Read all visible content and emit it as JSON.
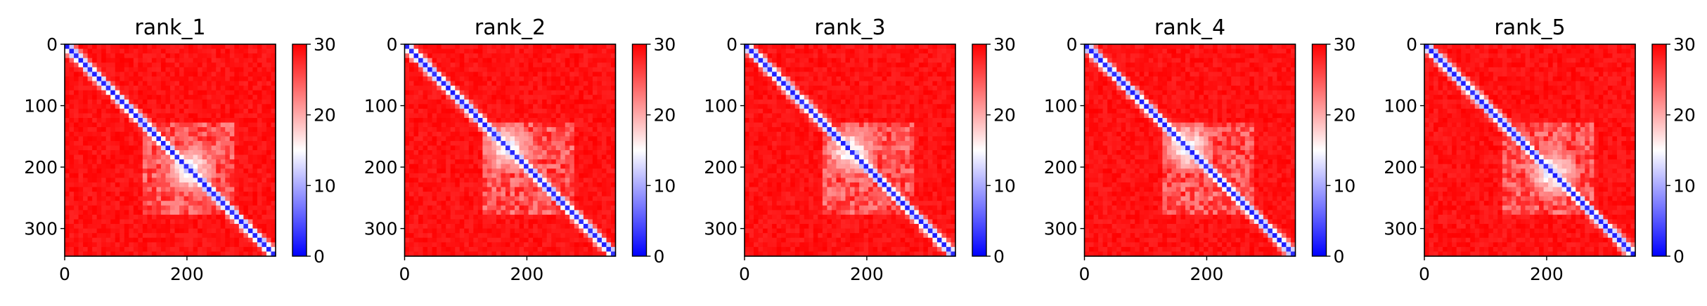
{
  "chart_data": [
    {
      "type": "heatmap",
      "title": "rank_1",
      "x_ticks": [
        0,
        200
      ],
      "y_ticks": [
        0,
        100,
        200,
        300
      ],
      "xlim": [
        0,
        345
      ],
      "ylim": [
        345,
        0
      ],
      "colorbar": {
        "ticks": [
          0,
          10,
          20,
          30
        ],
        "range": [
          0,
          30
        ],
        "colormap": "bwr"
      },
      "colors": {
        "low": "#0000ff",
        "mid": "#ffffff",
        "high": "#ff0000"
      }
    },
    {
      "type": "heatmap",
      "title": "rank_2",
      "x_ticks": [
        0,
        200
      ],
      "y_ticks": [
        0,
        100,
        200,
        300
      ],
      "xlim": [
        0,
        345
      ],
      "ylim": [
        345,
        0
      ],
      "colorbar": {
        "ticks": [
          0,
          10,
          20,
          30
        ],
        "range": [
          0,
          30
        ],
        "colormap": "bwr"
      },
      "colors": {
        "low": "#0000ff",
        "mid": "#ffffff",
        "high": "#ff0000"
      }
    },
    {
      "type": "heatmap",
      "title": "rank_3",
      "x_ticks": [
        0,
        200
      ],
      "y_ticks": [
        0,
        100,
        200,
        300
      ],
      "xlim": [
        0,
        345
      ],
      "ylim": [
        345,
        0
      ],
      "colorbar": {
        "ticks": [
          0,
          10,
          20,
          30
        ],
        "range": [
          0,
          30
        ],
        "colormap": "bwr"
      },
      "colors": {
        "low": "#0000ff",
        "mid": "#ffffff",
        "high": "#ff0000"
      }
    },
    {
      "type": "heatmap",
      "title": "rank_4",
      "x_ticks": [
        0,
        200
      ],
      "y_ticks": [
        0,
        100,
        200,
        300
      ],
      "xlim": [
        0,
        345
      ],
      "ylim": [
        345,
        0
      ],
      "colorbar": {
        "ticks": [
          0,
          10,
          20,
          30
        ],
        "range": [
          0,
          30
        ],
        "colormap": "bwr"
      },
      "colors": {
        "low": "#0000ff",
        "mid": "#ffffff",
        "high": "#ff0000"
      }
    },
    {
      "type": "heatmap",
      "title": "rank_5",
      "x_ticks": [
        0,
        200
      ],
      "y_ticks": [
        0,
        100,
        200,
        300
      ],
      "xlim": [
        0,
        345
      ],
      "ylim": [
        345,
        0
      ],
      "colorbar": {
        "ticks": [
          0,
          10,
          20,
          30
        ],
        "range": [
          0,
          30
        ],
        "colormap": "bwr"
      },
      "colors": {
        "low": "#0000ff",
        "mid": "#ffffff",
        "high": "#ff0000"
      }
    }
  ]
}
